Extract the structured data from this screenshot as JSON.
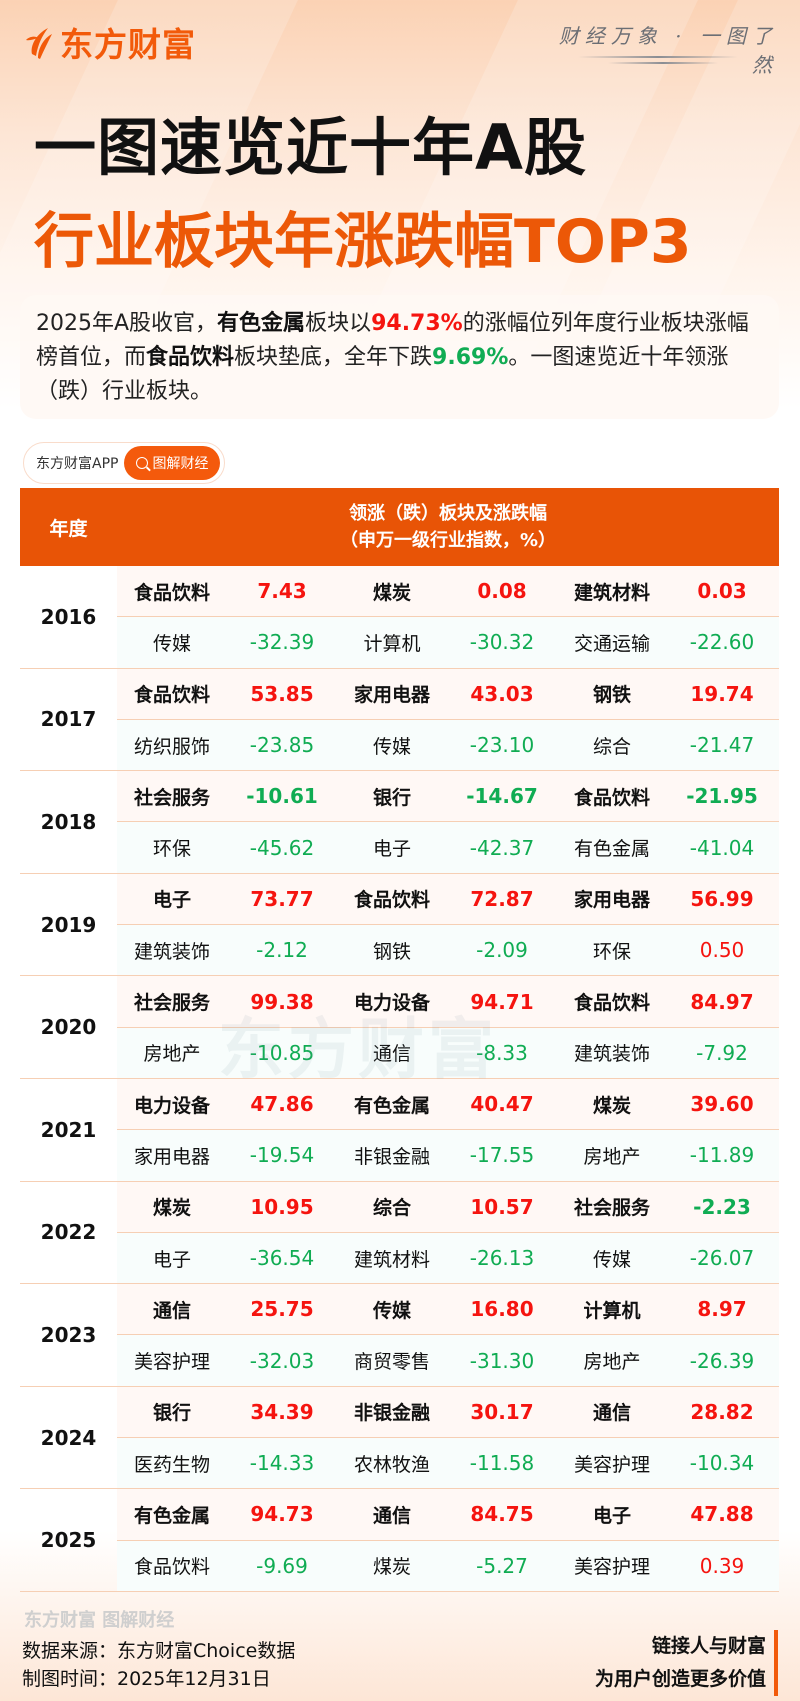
{
  "brand": {
    "logo_text": "东方财富",
    "slogan": "财经万象 · 一图了然",
    "accent_color": "#e85406",
    "up_color": "#f5140f",
    "down_color": "#10ac53"
  },
  "title": {
    "line1": "一图速览近十年A股",
    "line2": "行业板块年涨跌幅TOP3"
  },
  "intro": {
    "p1": "2025年A股收官，",
    "sector_top": "有色金属",
    "p2": "板块以",
    "pct_top": "94.73%",
    "p3": "的涨幅位列年度行业板块涨幅榜首位，而",
    "sector_bottom": "食品饮料",
    "p4": "板块垫底，全年下跌",
    "pct_bottom": "9.69%",
    "p5": "。一图速览近十年领涨（跌）行业板块。"
  },
  "app_pill": {
    "app_name": "东方财富APP",
    "search_label": "图解财经",
    "search_icon": "search-icon"
  },
  "table": {
    "header_year": "年度",
    "header_main_line1": "领涨（跌）板块及涨跌幅",
    "header_main_line2": "（申万一级行业指数，%）",
    "years": [
      {
        "year": "2016",
        "top": [
          {
            "name": "食品饮料",
            "val": "7.43",
            "dir": "pos"
          },
          {
            "name": "煤炭",
            "val": "0.08",
            "dir": "pos"
          },
          {
            "name": "建筑材料",
            "val": "0.03",
            "dir": "pos"
          }
        ],
        "bottom": [
          {
            "name": "传媒",
            "val": "-32.39",
            "dir": "neg"
          },
          {
            "name": "计算机",
            "val": "-30.32",
            "dir": "neg"
          },
          {
            "name": "交通运输",
            "val": "-22.60",
            "dir": "neg"
          }
        ]
      },
      {
        "year": "2017",
        "top": [
          {
            "name": "食品饮料",
            "val": "53.85",
            "dir": "pos"
          },
          {
            "name": "家用电器",
            "val": "43.03",
            "dir": "pos"
          },
          {
            "name": "钢铁",
            "val": "19.74",
            "dir": "pos"
          }
        ],
        "bottom": [
          {
            "name": "纺织服饰",
            "val": "-23.85",
            "dir": "neg"
          },
          {
            "name": "传媒",
            "val": "-23.10",
            "dir": "neg"
          },
          {
            "name": "综合",
            "val": "-21.47",
            "dir": "neg"
          }
        ]
      },
      {
        "year": "2018",
        "top": [
          {
            "name": "社会服务",
            "val": "-10.61",
            "dir": "neg"
          },
          {
            "name": "银行",
            "val": "-14.67",
            "dir": "neg"
          },
          {
            "name": "食品饮料",
            "val": "-21.95",
            "dir": "neg"
          }
        ],
        "bottom": [
          {
            "name": "环保",
            "val": "-45.62",
            "dir": "neg"
          },
          {
            "name": "电子",
            "val": "-42.37",
            "dir": "neg"
          },
          {
            "name": "有色金属",
            "val": "-41.04",
            "dir": "neg"
          }
        ]
      },
      {
        "year": "2019",
        "top": [
          {
            "name": "电子",
            "val": "73.77",
            "dir": "pos"
          },
          {
            "name": "食品饮料",
            "val": "72.87",
            "dir": "pos"
          },
          {
            "name": "家用电器",
            "val": "56.99",
            "dir": "pos"
          }
        ],
        "bottom": [
          {
            "name": "建筑装饰",
            "val": "-2.12",
            "dir": "neg"
          },
          {
            "name": "钢铁",
            "val": "-2.09",
            "dir": "neg"
          },
          {
            "name": "环保",
            "val": "0.50",
            "dir": "pos"
          }
        ]
      },
      {
        "year": "2020",
        "top": [
          {
            "name": "社会服务",
            "val": "99.38",
            "dir": "pos"
          },
          {
            "name": "电力设备",
            "val": "94.71",
            "dir": "pos"
          },
          {
            "name": "食品饮料",
            "val": "84.97",
            "dir": "pos"
          }
        ],
        "bottom": [
          {
            "name": "房地产",
            "val": "-10.85",
            "dir": "neg"
          },
          {
            "name": "通信",
            "val": "-8.33",
            "dir": "neg"
          },
          {
            "name": "建筑装饰",
            "val": "-7.92",
            "dir": "neg"
          }
        ]
      },
      {
        "year": "2021",
        "top": [
          {
            "name": "电力设备",
            "val": "47.86",
            "dir": "pos"
          },
          {
            "name": "有色金属",
            "val": "40.47",
            "dir": "pos"
          },
          {
            "name": "煤炭",
            "val": "39.60",
            "dir": "pos"
          }
        ],
        "bottom": [
          {
            "name": "家用电器",
            "val": "-19.54",
            "dir": "neg"
          },
          {
            "name": "非银金融",
            "val": "-17.55",
            "dir": "neg"
          },
          {
            "name": "房地产",
            "val": "-11.89",
            "dir": "neg"
          }
        ]
      },
      {
        "year": "2022",
        "top": [
          {
            "name": "煤炭",
            "val": "10.95",
            "dir": "pos"
          },
          {
            "name": "综合",
            "val": "10.57",
            "dir": "pos"
          },
          {
            "name": "社会服务",
            "val": "-2.23",
            "dir": "neg"
          }
        ],
        "bottom": [
          {
            "name": "电子",
            "val": "-36.54",
            "dir": "neg"
          },
          {
            "name": "建筑材料",
            "val": "-26.13",
            "dir": "neg"
          },
          {
            "name": "传媒",
            "val": "-26.07",
            "dir": "neg"
          }
        ]
      },
      {
        "year": "2023",
        "top": [
          {
            "name": "通信",
            "val": "25.75",
            "dir": "pos"
          },
          {
            "name": "传媒",
            "val": "16.80",
            "dir": "pos"
          },
          {
            "name": "计算机",
            "val": "8.97",
            "dir": "pos"
          }
        ],
        "bottom": [
          {
            "name": "美容护理",
            "val": "-32.03",
            "dir": "neg"
          },
          {
            "name": "商贸零售",
            "val": "-31.30",
            "dir": "neg"
          },
          {
            "name": "房地产",
            "val": "-26.39",
            "dir": "neg"
          }
        ]
      },
      {
        "year": "2024",
        "top": [
          {
            "name": "银行",
            "val": "34.39",
            "dir": "pos"
          },
          {
            "name": "非银金融",
            "val": "30.17",
            "dir": "pos"
          },
          {
            "name": "通信",
            "val": "28.82",
            "dir": "pos"
          }
        ],
        "bottom": [
          {
            "name": "医药生物",
            "val": "-14.33",
            "dir": "neg"
          },
          {
            "name": "农林牧渔",
            "val": "-11.58",
            "dir": "neg"
          },
          {
            "name": "美容护理",
            "val": "-10.34",
            "dir": "neg"
          }
        ]
      },
      {
        "year": "2025",
        "top": [
          {
            "name": "有色金属",
            "val": "94.73",
            "dir": "pos"
          },
          {
            "name": "通信",
            "val": "84.75",
            "dir": "pos"
          },
          {
            "name": "电子",
            "val": "47.88",
            "dir": "pos"
          }
        ],
        "bottom": [
          {
            "name": "食品饮料",
            "val": "-9.69",
            "dir": "neg"
          },
          {
            "name": "煤炭",
            "val": "-5.27",
            "dir": "neg"
          },
          {
            "name": "美容护理",
            "val": "0.39",
            "dir": "pos"
          }
        ]
      }
    ]
  },
  "watermark": "东方财富",
  "footer": {
    "brand_mark": "东方财富 图解财经",
    "source": "数据来源：东方财富Choice数据",
    "date": "制图时间：2025年12月31日",
    "tagline1": "链接人与财富",
    "tagline2": "为用户创造更多价值"
  }
}
